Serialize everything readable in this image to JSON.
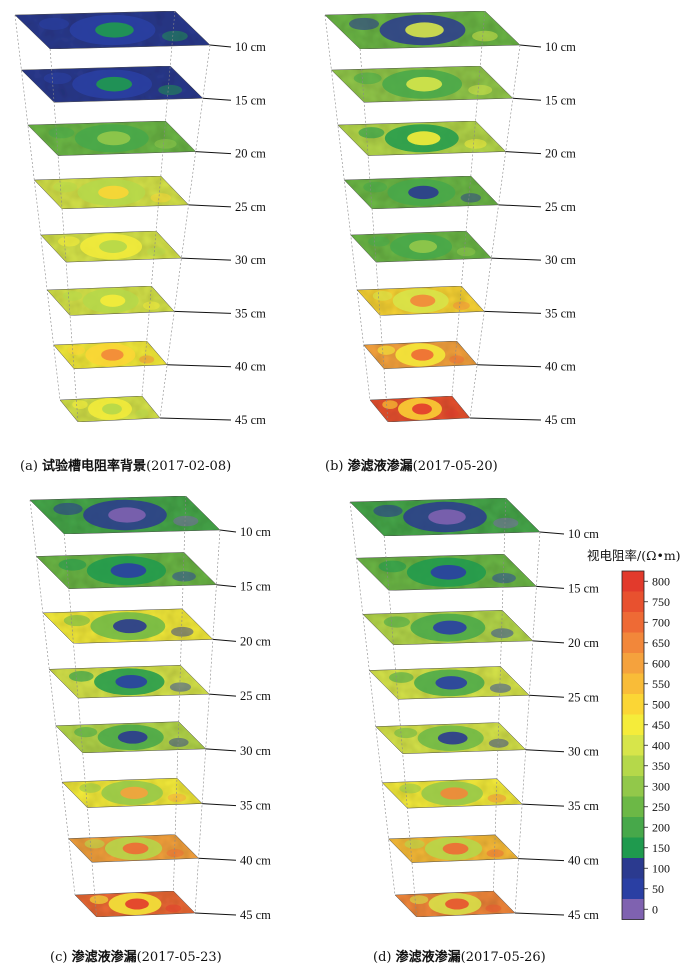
{
  "panels": [
    {
      "id": "a",
      "caption_prefix": "(a)",
      "caption_title": "试验槽电阻率背景",
      "caption_date": "(2017-02-08)"
    },
    {
      "id": "b",
      "caption_prefix": "(b)",
      "caption_title": "渗滤液渗漏",
      "caption_date": "(2017-05-20)"
    },
    {
      "id": "c",
      "caption_prefix": "(c)",
      "caption_title": "渗滤液渗漏",
      "caption_date": "(2017-05-23)"
    },
    {
      "id": "d",
      "caption_prefix": "(d)",
      "caption_title": "渗滤液渗漏",
      "caption_date": "(2017-05-26)"
    }
  ],
  "depth_labels": [
    "10 cm",
    "15 cm",
    "20 cm",
    "25 cm",
    "30 cm",
    "35 cm",
    "40 cm",
    "45 cm"
  ],
  "colorbar": {
    "title": "视电阻率/(Ω•m)",
    "ticks": [
      "800",
      "750",
      "700",
      "650",
      "600",
      "550",
      "500",
      "450",
      "400",
      "350",
      "300",
      "250",
      "200",
      "150",
      "100",
      "50",
      "0"
    ],
    "colors": [
      "#e23a2c",
      "#e8512f",
      "#ee6a35",
      "#f2873a",
      "#f5a23d",
      "#f9bc38",
      "#fbd635",
      "#f5ec3a",
      "#d7e54a",
      "#b5d84a",
      "#92c84a",
      "#6cb846",
      "#47a84a",
      "#1f9a4e",
      "#2b3a8f",
      "#2a3fa3",
      "#7f62b0"
    ]
  }
}
